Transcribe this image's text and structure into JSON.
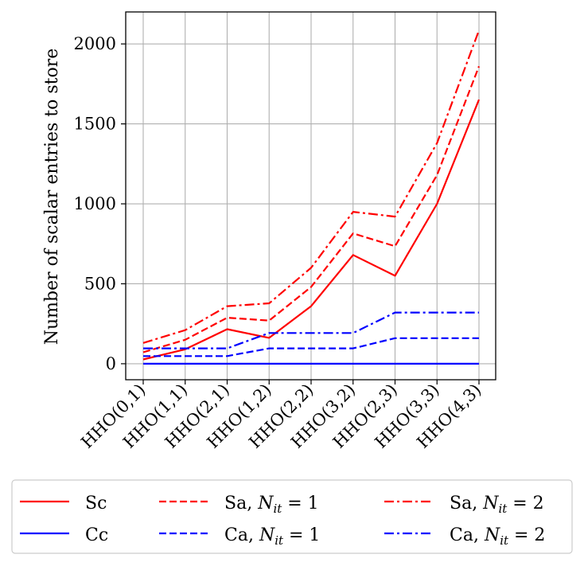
{
  "chart_data": {
    "type": "line",
    "title": "",
    "xlabel": "",
    "ylabel": "Number of scalar entries to store",
    "categories": [
      "HHO(0,1)",
      "HHO(1,1)",
      "HHO(2,1)",
      "HHO(1,2)",
      "HHO(2,2)",
      "HHO(3,2)",
      "HHO(2,3)",
      "HHO(3,3)",
      "HHO(4,3)"
    ],
    "ylim": [
      -100,
      2200
    ],
    "yticks": [
      0,
      500,
      1000,
      1500,
      2000
    ],
    "grid": true,
    "legend_position": "bottom",
    "series": [
      {
        "name": "Sc",
        "color": "#ff0000",
        "dash": "solid",
        "values": [
          27,
          90,
          216,
          162,
          360,
          680,
          550,
          1000,
          1652
        ]
      },
      {
        "name": "Cc",
        "color": "#0000ff",
        "dash": "solid",
        "values": [
          0,
          0,
          0,
          0,
          0,
          0,
          0,
          0,
          0
        ]
      },
      {
        "name": "Sa, N_it = 1",
        "color": "#ff0000",
        "dash": "dashed",
        "values": [
          72,
          150,
          288,
          270,
          480,
          815,
          735,
          1180,
          1860
        ]
      },
      {
        "name": "Ca, N_it = 1",
        "color": "#0000ff",
        "dash": "dashed",
        "values": [
          48,
          48,
          48,
          96,
          96,
          96,
          160,
          160,
          160
        ]
      },
      {
        "name": "Sa, N_it = 2",
        "color": "#ff0000",
        "dash": "dashdot",
        "values": [
          130,
          210,
          360,
          378,
          600,
          950,
          920,
          1380,
          2085
        ]
      },
      {
        "name": "Ca, N_it = 2",
        "color": "#0000ff",
        "dash": "dashdot",
        "values": [
          96,
          96,
          96,
          192,
          192,
          192,
          320,
          320,
          320
        ]
      }
    ]
  }
}
